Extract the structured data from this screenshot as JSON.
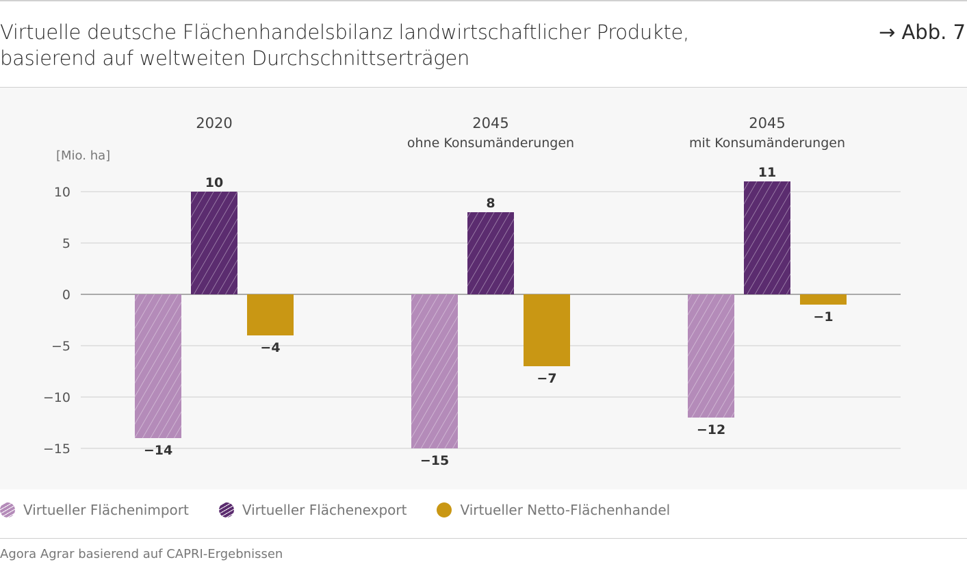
{
  "header": {
    "title_line1": "Virtuelle deutsche Flächenhandelsbilanz landwirtschaftlicher Produkte,",
    "title_line2": "basierend auf weltweiten Durchschnittserträgen",
    "figure_ref": "→ Abb. 7"
  },
  "source": "Agora Agrar basierend auf CAPRI-Ergebnissen",
  "chart_data": {
    "type": "bar",
    "ylabel": "[Mio. ha]",
    "ylim": [
      -15,
      10
    ],
    "yticks": [
      10,
      5,
      0,
      -5,
      -10,
      -15
    ],
    "grid": true,
    "legend_placement": "bottom",
    "categories": [
      {
        "line1": "2020",
        "line2": ""
      },
      {
        "line1": "2045",
        "line2": "ohne Konsumänderungen"
      },
      {
        "line1": "2045",
        "line2": "mit Konsumänderungen"
      }
    ],
    "series": [
      {
        "name": "Virtueller Flächenimport",
        "values": [
          -14,
          -15,
          -12
        ],
        "color": "#b48bb9",
        "hatched": true
      },
      {
        "name": "Virtueller Flächenexport",
        "values": [
          10,
          8,
          11
        ],
        "color": "#5b2c6f",
        "hatched": true
      },
      {
        "name": "Virtueller Netto-Flächenhandel",
        "values": [
          -4,
          -7,
          -1
        ],
        "color": "#c99714",
        "hatched": false
      }
    ]
  }
}
